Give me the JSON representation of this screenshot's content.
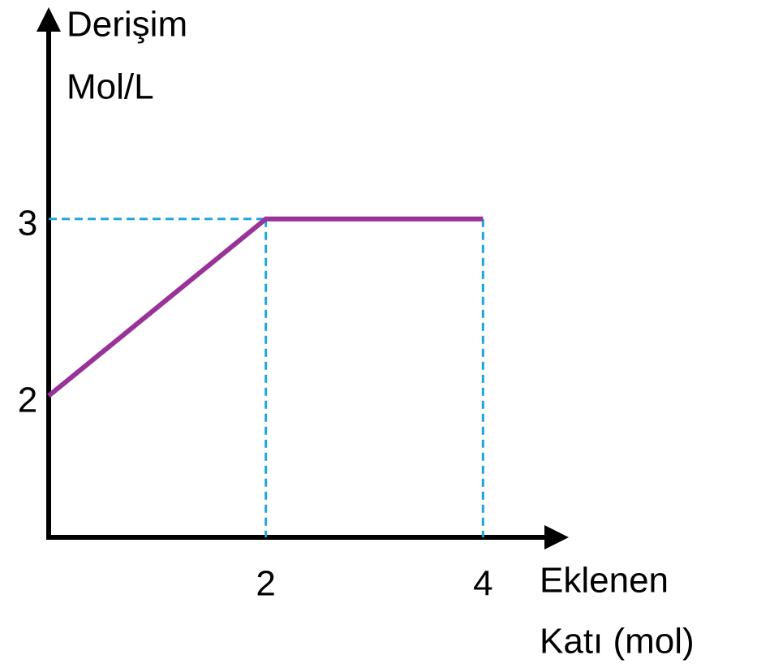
{
  "chart_data": {
    "type": "line",
    "ylabel": [
      "Derişim",
      "Mol/L"
    ],
    "xlabel": [
      "Eklenen",
      "Katı (mol)"
    ],
    "x": [
      0,
      2,
      4
    ],
    "series": [
      {
        "name": "Derişim",
        "color": "#993399",
        "values": [
          2,
          3,
          3
        ]
      }
    ],
    "xlim": [
      0,
      4.7
    ],
    "ylim": [
      1.2,
      4.1
    ],
    "xticks": [
      2,
      4
    ],
    "yticks": [
      2,
      3
    ],
    "guide_color": "#1ea6d8"
  }
}
